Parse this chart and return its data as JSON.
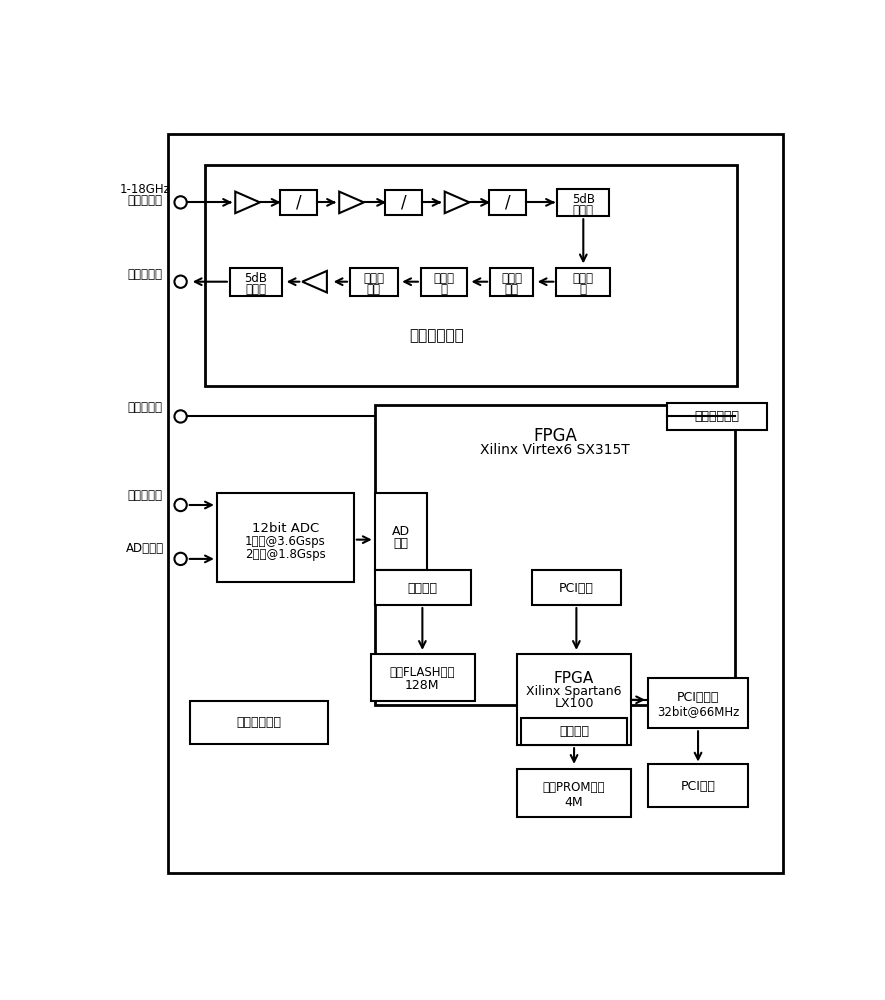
{
  "fig_width": 8.85,
  "fig_height": 10.0,
  "bg_color": "#ffffff",
  "border_color": "#000000",
  "text_color": "#000000",
  "labels": {
    "rf_input_top": "1-18GHz",
    "rf_input_bot": "射频信号入",
    "rf_output": "分频信号出",
    "rf_module_label": "射频分频模块",
    "sysclk_label": "系统时钟入",
    "instant_freq_out": "瞬时测频码出",
    "div_sig_in": "分频信号入",
    "ad_clk_in": "AD时钟入",
    "adc_line1": "12bit ADC",
    "adc_line2": "1通道@3.6Gsps",
    "adc_line3": "2通道@1.8Gsps",
    "ad_port": "AD\n接口",
    "fpga1_line1": "FPGA",
    "fpga1_line2": "Xilinx Virtex6 SX315T",
    "config_port1": "配置接口",
    "pci_port": "PCI接口",
    "flash_line1": "配置FLASH芯片",
    "flash_line2": "128M",
    "fpga2_line1": "FPGA",
    "fpga2_line2": "Xilinx Spartan6",
    "fpga2_line3": "LX100",
    "config_port2": "配置接口",
    "prom_line1": "配置PROM芯片",
    "prom_line2": "4M",
    "pci_bridge_line1": "PCI桥芯片",
    "pci_bridge_line2": "32bit@66MHz",
    "pci_bus": "PCI总线",
    "power_mgmt": "电源管理模块",
    "atten1_l1": "5dB",
    "atten1_l2": "衰减器",
    "atten2_l1": "5dB",
    "atten2_l2": "衰减器",
    "lowpass_l1": "低通滤",
    "lowpass_l2": "波器",
    "quad_div1_l1": "四分频",
    "quad_div1_l2": "器",
    "bandpass_l1": "带通滤",
    "bandpass_l2": "波器",
    "quad_div2_l1": "四分频",
    "quad_div2_l2": "器",
    "slash": "/"
  }
}
